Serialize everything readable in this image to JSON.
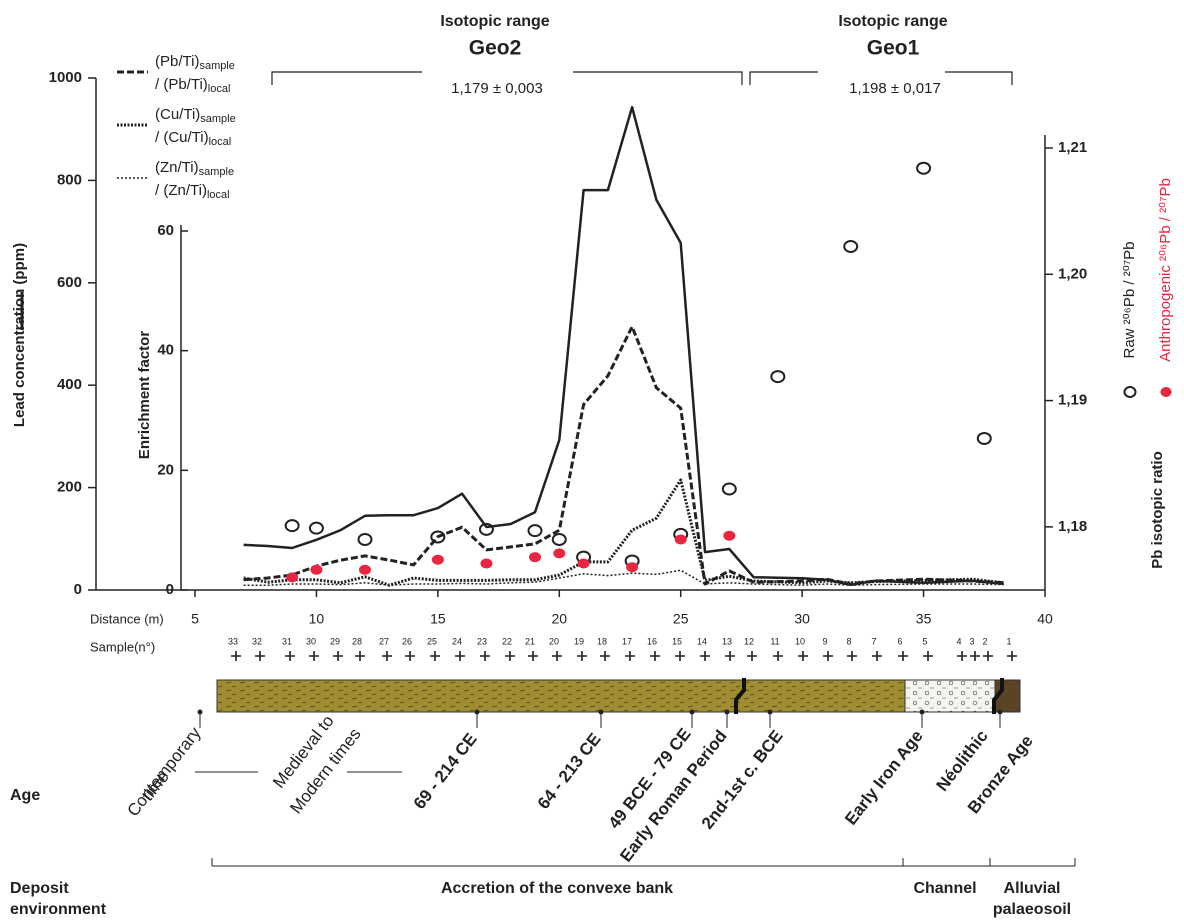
{
  "chart_data": {
    "type": "line",
    "x_label": "Distance (m)",
    "xlim": [
      5,
      40
    ],
    "xticks": [
      5,
      10,
      15,
      20,
      25,
      30,
      35,
      40
    ],
    "y_label": "Lead concentration (ppm)",
    "ylim": [
      0,
      1000
    ],
    "yticks": [
      0,
      200,
      400,
      600,
      800,
      1000
    ],
    "y3_label": "Enrichment factor",
    "y3lim": [
      0,
      60
    ],
    "y3ticks": [
      0,
      20,
      40,
      60
    ],
    "y2_label": "Pb isotopic ratio",
    "y2lim": [
      1.175,
      1.21
    ],
    "y2ticks": [
      {
        "value": 1.18,
        "label": "1,18"
      },
      {
        "value": 1.19,
        "label": "1,19"
      },
      {
        "value": 1.2,
        "label": "1,20"
      },
      {
        "value": 1.21,
        "label": "1,21"
      }
    ],
    "series": [
      {
        "type": "line",
        "axis": "y",
        "color": "#222222",
        "dash": "solid",
        "x": [
          7,
          8,
          9,
          10,
          11,
          12,
          13,
          14,
          15,
          16,
          17,
          18,
          19,
          20,
          21,
          22,
          23,
          24,
          25,
          26,
          27,
          28,
          30,
          31,
          32,
          33,
          35,
          37,
          38.3
        ],
        "values": [
          88,
          86,
          82,
          98,
          117,
          145,
          146,
          146,
          160,
          188,
          123,
          129,
          152,
          293,
          781,
          781,
          943,
          762,
          678,
          74,
          80,
          25,
          23,
          20,
          10,
          18,
          14,
          18,
          12
        ]
      },
      {
        "type": "line",
        "axis": "y3",
        "color": "#222222",
        "dash": "dashed",
        "name": "(Pb/Ti)",
        "name_sub": "sample",
        "name2": "/ (Pb/Ti)",
        "name2_sub": "local",
        "x": [
          7,
          8,
          9,
          10,
          11,
          12,
          13,
          14,
          15,
          16,
          17,
          18,
          19,
          20,
          21,
          22,
          23,
          24,
          25,
          26,
          27,
          28,
          30,
          31,
          32,
          33,
          35,
          37,
          38.3
        ],
        "values": [
          1.7,
          2,
          2.5,
          4,
          5,
          5.7,
          5,
          4.2,
          8.9,
          10.5,
          6.7,
          7.2,
          7.7,
          10,
          31,
          35.8,
          44,
          33.8,
          30.4,
          1,
          3.2,
          1.3,
          1.5,
          1.8,
          1,
          1.5,
          1.8,
          1.5,
          1.2
        ]
      },
      {
        "type": "line",
        "axis": "y3",
        "color": "#222222",
        "dash": "dotted",
        "name": "(Cu/Ti)",
        "name_sub": "sample",
        "name2": "/ (Cu/Ti)",
        "name2_sub": "local",
        "x": [
          7,
          8,
          9,
          10,
          11,
          12,
          13,
          14,
          15,
          16,
          17,
          18,
          19,
          20,
          21,
          22,
          23,
          24,
          25,
          26,
          27,
          28,
          30,
          31,
          32,
          33,
          35,
          37,
          38.3
        ],
        "values": [
          2,
          1.3,
          1.7,
          1.7,
          1.2,
          2.2,
          0.8,
          2,
          1.6,
          1.6,
          1.6,
          1.7,
          1.7,
          2.5,
          4.7,
          4.7,
          10,
          12,
          18.4,
          1.6,
          2.3,
          1.5,
          1.2,
          1.5,
          1.2,
          1.4,
          1.6,
          1.8,
          1.2
        ]
      },
      {
        "type": "line",
        "axis": "y3",
        "color": "#222222",
        "dash": "thin-dotted",
        "name": "(Zn/Ti)",
        "name_sub": "sample",
        "name2": "/ (Zn/Ti)",
        "name2_sub": "local",
        "x": [
          7,
          8,
          9,
          10,
          11,
          12,
          13,
          14,
          15,
          16,
          17,
          18,
          19,
          20,
          21,
          22,
          23,
          24,
          25,
          26,
          27,
          28,
          30,
          31,
          32,
          33,
          35,
          37,
          38.3
        ],
        "values": [
          0.8,
          0.8,
          1,
          1,
          0.9,
          1.2,
          0.8,
          1,
          1,
          1.1,
          1,
          1.2,
          1.3,
          2,
          2.7,
          2.4,
          2.8,
          2.6,
          3.3,
          1,
          1.2,
          1,
          0.8,
          1,
          0.8,
          0.9,
          1,
          1,
          0.9
        ]
      },
      {
        "type": "scatter",
        "axis": "y2",
        "marker": "open-circle",
        "color": "#222222",
        "name": "Raw ²⁰⁶Pb / ²⁰⁷Pb",
        "x": [
          9,
          10,
          12,
          15,
          17,
          19,
          20,
          21,
          23,
          25,
          27,
          29,
          32,
          35,
          37.5
        ],
        "values": [
          1.1801,
          1.1799,
          1.179,
          1.1792,
          1.1798,
          1.1797,
          1.179,
          1.1776,
          1.1773,
          1.1794,
          1.183,
          1.1919,
          1.2022,
          1.2084,
          1.187
        ]
      },
      {
        "type": "scatter",
        "axis": "y2",
        "marker": "filled-circle",
        "color": "#e8263f",
        "name": "Anthropogenic ²⁰⁶Pb / ²⁰⁷Pb",
        "x": [
          9,
          10,
          12,
          15,
          17,
          19,
          20,
          21,
          23,
          25,
          27
        ],
        "values": [
          1.176,
          1.1766,
          1.1766,
          1.1774,
          1.1771,
          1.1776,
          1.1779,
          1.1771,
          1.1768,
          1.179,
          1.1793
        ]
      }
    ],
    "isotopic_ranges": [
      {
        "title": "Isotopic range",
        "name": "Geo2",
        "value": "1,179 ± 0,003"
      },
      {
        "title": "Isotopic range",
        "name": "Geo1",
        "value": "1,198 ± 0,017"
      }
    ],
    "sample_label": "Sample(n°)",
    "samples": [
      "33",
      "32",
      "31",
      "30",
      "29",
      "28",
      "27",
      "26",
      "25",
      "24",
      "23",
      "22",
      "21",
      "20",
      "19",
      "18",
      "17",
      "16",
      "15",
      "14",
      "13",
      "12",
      "11",
      "10",
      "9",
      "8",
      "7",
      "6",
      "5",
      "4",
      "3",
      "2",
      "1"
    ],
    "age_label": "Age",
    "ages": [
      "Contemporary",
      "time",
      "Medieval to",
      "Modern times",
      "69 - 214 CE",
      "64 - 213 CE",
      "49 BCE - 79 CE",
      "Early Roman Period",
      "2nd-1st c. BCE",
      "Early Iron Age",
      "Néolithic",
      "Bronze Age"
    ],
    "deposit_label": [
      "Deposit",
      "environment"
    ],
    "deposits": [
      "Accretion of the convexe bank",
      "Channel",
      "Alluvial",
      "palaeosoil"
    ]
  }
}
